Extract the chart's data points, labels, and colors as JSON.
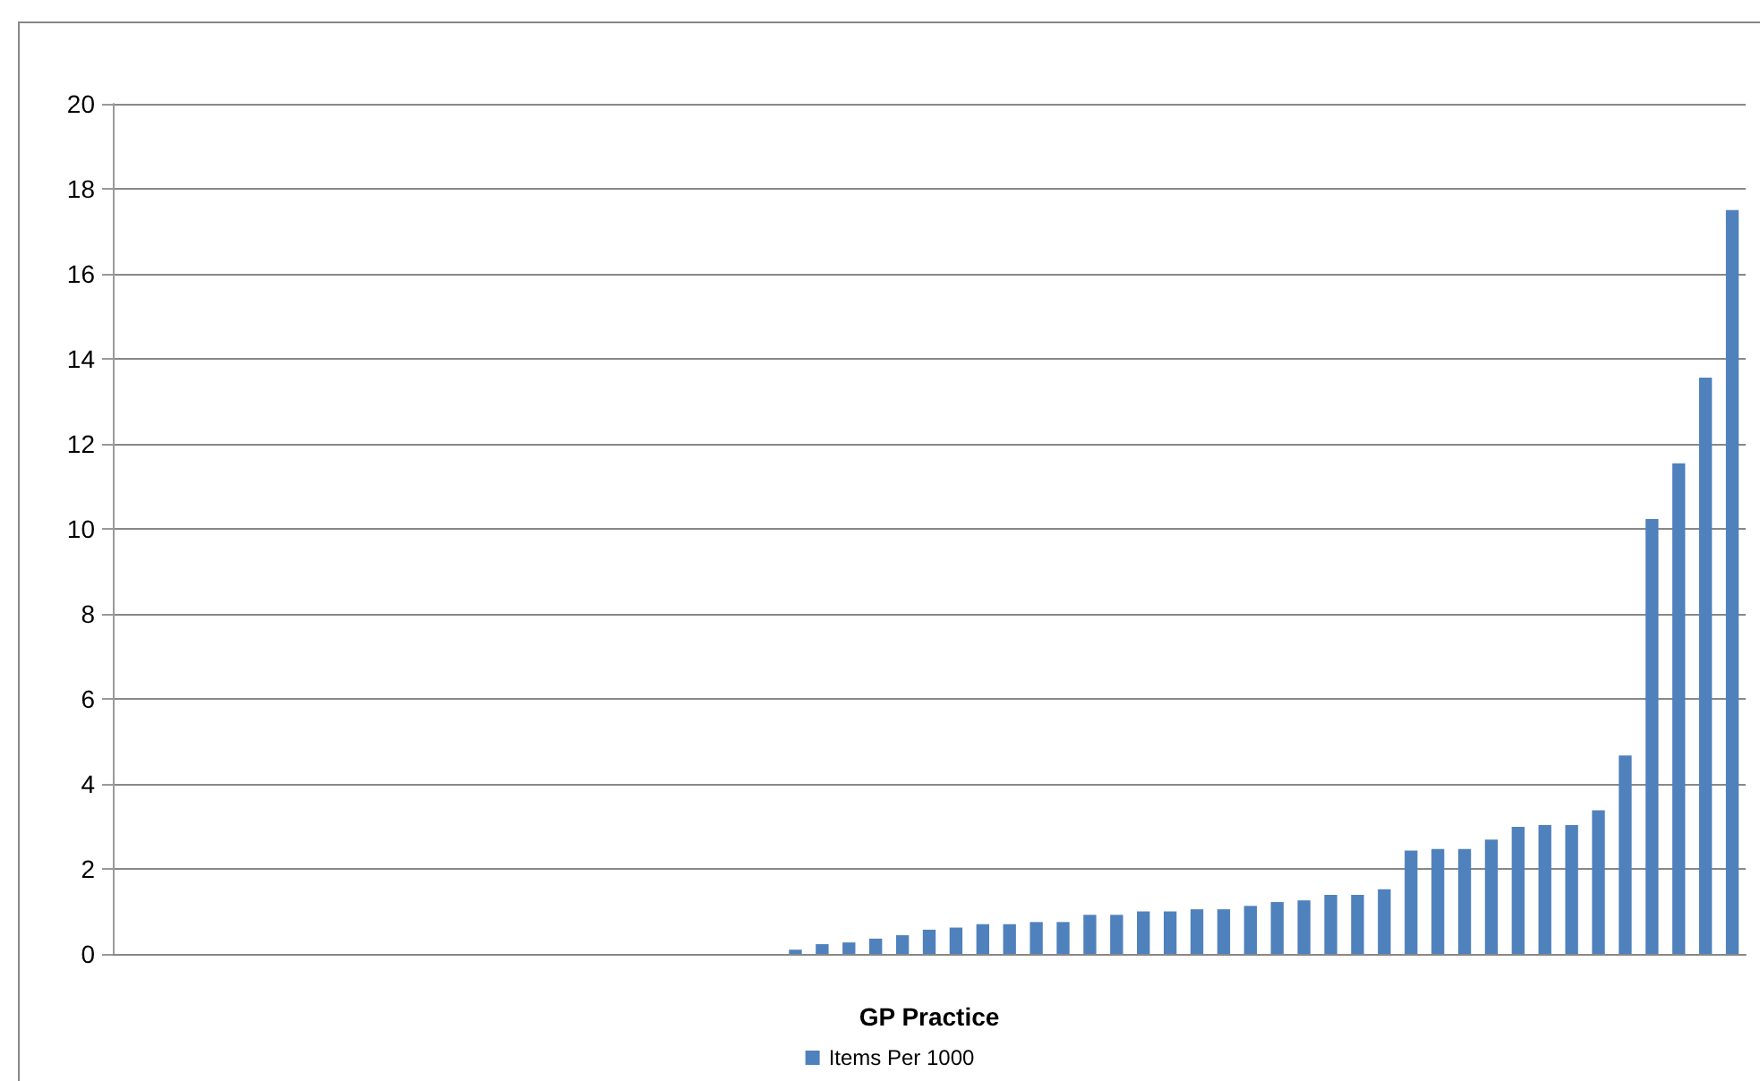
{
  "chart_data": {
    "type": "bar",
    "xlabel": "GP Practice",
    "categories": [
      null,
      null,
      null,
      null,
      null,
      null,
      null,
      null,
      null,
      null,
      null,
      null,
      null,
      null,
      null,
      null,
      null,
      null,
      null,
      null,
      null,
      null,
      null,
      null,
      null,
      null,
      null,
      null,
      null,
      null,
      null,
      null,
      null,
      null,
      null,
      null,
      null,
      null,
      null,
      null,
      null,
      null,
      null,
      null,
      null,
      null,
      null,
      null,
      null,
      null,
      null,
      null,
      null,
      null,
      null,
      null,
      null,
      null,
      null,
      null,
      null
    ],
    "series": [
      {
        "name": "Items Per 1000",
        "color": "#4f81bd",
        "values": [
          0,
          0,
          0,
          0,
          0,
          0,
          0,
          0,
          0,
          0,
          0,
          0,
          0,
          0,
          0,
          0,
          0,
          0,
          0,
          0,
          0,
          0,
          0,
          0,
          0,
          0.1,
          0.23,
          0.27,
          0.36,
          0.44,
          0.57,
          0.62,
          0.7,
          0.7,
          0.75,
          0.75,
          0.92,
          0.92,
          1.0,
          1.0,
          1.05,
          1.05,
          1.13,
          1.22,
          1.26,
          1.39,
          1.39,
          1.52,
          2.43,
          2.47,
          2.47,
          2.69,
          2.99,
          3.03,
          3.03,
          3.38,
          4.67,
          10.23,
          11.54,
          13.56,
          17.5
        ]
      }
    ],
    "ylim": [
      0,
      20
    ],
    "yticks": [
      0,
      2,
      4,
      6,
      8,
      10,
      12,
      14,
      16,
      18,
      20
    ],
    "grid": "y",
    "legend": "bottom"
  }
}
